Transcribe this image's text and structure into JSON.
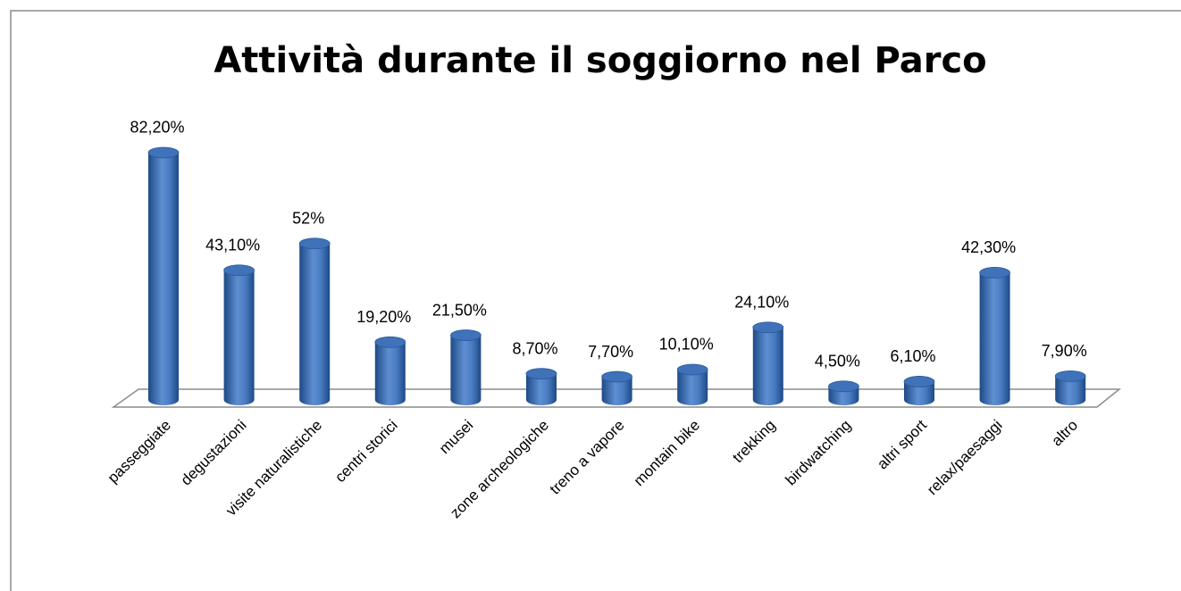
{
  "chart_data": {
    "type": "bar",
    "title": "Attività durante il soggiorno nel Parco",
    "categories": [
      "passeggiate",
      "degustazioni",
      "visite naturalistiche",
      "centri storici",
      "musei",
      "zone archeologiche",
      "treno a vapore",
      "montain bike",
      "trekking",
      "birdwatching",
      "altri sport",
      "relax/paesaggi",
      "altro"
    ],
    "values": [
      82.2,
      43.1,
      52,
      19.2,
      21.5,
      8.7,
      7.7,
      10.1,
      24.1,
      4.5,
      6.1,
      42.3,
      7.9
    ],
    "value_labels": [
      "82,20%",
      "43,10%",
      "52%",
      "19,20%",
      "21,50%",
      "8,70%",
      "7,70%",
      "10,10%",
      "24,10%",
      "4,50%",
      "6,10%",
      "42,30%",
      "7,90%"
    ],
    "color": "#3f72b8"
  }
}
